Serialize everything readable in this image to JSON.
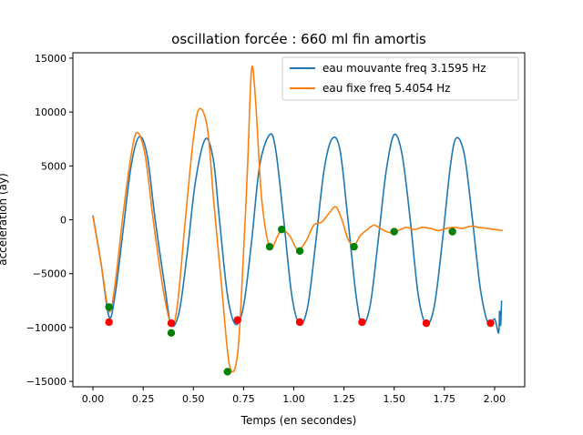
{
  "chart_data": {
    "type": "line",
    "title": "oscillation forcée : 660 ml fin amortis",
    "xlabel": "Temps (en secondes)",
    "ylabel": "acceleration (ay)",
    "xlim": [
      -0.1,
      2.15
    ],
    "ylim": [
      -15500,
      15500
    ],
    "xticks": [
      0.0,
      0.25,
      0.5,
      0.75,
      1.0,
      1.25,
      1.5,
      1.75,
      2.0
    ],
    "xtick_labels": [
      "0.00",
      "0.25",
      "0.50",
      "0.75",
      "1.00",
      "1.25",
      "1.50",
      "1.75",
      "2.00"
    ],
    "yticks": [
      -15000,
      -10000,
      -5000,
      0,
      5000,
      10000,
      15000
    ],
    "ytick_labels": [
      "−15000",
      "−10000",
      "−5000",
      "0",
      "5000",
      "10000",
      "15000"
    ],
    "grid": false,
    "legend_position": "top-right",
    "series": [
      {
        "name": "eau mouvante freq 3.1595 Hz",
        "color": "#1f77b4",
        "points": [
          [
            0.0,
            400
          ],
          [
            0.04,
            -4000
          ],
          [
            0.08,
            -9000
          ],
          [
            0.11,
            -7000
          ],
          [
            0.15,
            -1000
          ],
          [
            0.19,
            5000
          ],
          [
            0.23,
            7700
          ],
          [
            0.27,
            6000
          ],
          [
            0.31,
            0
          ],
          [
            0.36,
            -6500
          ],
          [
            0.39,
            -9800
          ],
          [
            0.43,
            -8500
          ],
          [
            0.47,
            -3000
          ],
          [
            0.51,
            3500
          ],
          [
            0.56,
            7500
          ],
          [
            0.6,
            5500
          ],
          [
            0.63,
            0
          ],
          [
            0.67,
            -7000
          ],
          [
            0.71,
            -9700
          ],
          [
            0.75,
            -8000
          ],
          [
            0.79,
            -2000
          ],
          [
            0.83,
            5000
          ],
          [
            0.88,
            7900
          ],
          [
            0.91,
            6500
          ],
          [
            0.95,
            0
          ],
          [
            0.99,
            -7000
          ],
          [
            1.03,
            -9700
          ],
          [
            1.07,
            -8000
          ],
          [
            1.11,
            -2000
          ],
          [
            1.15,
            4500
          ],
          [
            1.19,
            7500
          ],
          [
            1.23,
            6500
          ],
          [
            1.27,
            0
          ],
          [
            1.31,
            -7000
          ],
          [
            1.34,
            -9700
          ],
          [
            1.38,
            -8000
          ],
          [
            1.42,
            -2000
          ],
          [
            1.46,
            4500
          ],
          [
            1.5,
            7900
          ],
          [
            1.54,
            6000
          ],
          [
            1.58,
            0
          ],
          [
            1.62,
            -7000
          ],
          [
            1.66,
            -9700
          ],
          [
            1.7,
            -8000
          ],
          [
            1.74,
            -2000
          ],
          [
            1.78,
            5000
          ],
          [
            1.81,
            7600
          ],
          [
            1.85,
            6000
          ],
          [
            1.89,
            0
          ],
          [
            1.93,
            -6500
          ],
          [
            1.97,
            -9700
          ],
          [
            2.0,
            -9200
          ],
          [
            2.02,
            -10500
          ],
          [
            2.025,
            -8500
          ],
          [
            2.03,
            -9800
          ],
          [
            2.035,
            -7500
          ]
        ]
      },
      {
        "name": "eau fixe freq 5.4054 Hz",
        "color": "#ff7f0e",
        "points": [
          [
            0.0,
            300
          ],
          [
            0.04,
            -4000
          ],
          [
            0.08,
            -8500
          ],
          [
            0.11,
            -6000
          ],
          [
            0.15,
            500
          ],
          [
            0.19,
            6000
          ],
          [
            0.22,
            8100
          ],
          [
            0.26,
            6000
          ],
          [
            0.3,
            0
          ],
          [
            0.35,
            -6500
          ],
          [
            0.39,
            -9700
          ],
          [
            0.42,
            -8000
          ],
          [
            0.46,
            0
          ],
          [
            0.5,
            7500
          ],
          [
            0.53,
            10300
          ],
          [
            0.57,
            8500
          ],
          [
            0.6,
            2000
          ],
          [
            0.64,
            -6000
          ],
          [
            0.68,
            -13500
          ],
          [
            0.72,
            -12500
          ],
          [
            0.75,
            -3000
          ],
          [
            0.77,
            5000
          ],
          [
            0.79,
            14000
          ],
          [
            0.81,
            11000
          ],
          [
            0.84,
            2000
          ],
          [
            0.88,
            -2500
          ],
          [
            0.92,
            -1500
          ],
          [
            0.94,
            -900
          ],
          [
            0.98,
            -1500
          ],
          [
            1.02,
            -2800
          ],
          [
            1.06,
            -2000
          ],
          [
            1.1,
            -500
          ],
          [
            1.14,
            -200
          ],
          [
            1.18,
            700
          ],
          [
            1.21,
            1200
          ],
          [
            1.24,
            0
          ],
          [
            1.27,
            -1800
          ],
          [
            1.3,
            -2400
          ],
          [
            1.33,
            -1500
          ],
          [
            1.36,
            -1000
          ],
          [
            1.4,
            -500
          ],
          [
            1.44,
            -900
          ],
          [
            1.48,
            -1200
          ],
          [
            1.52,
            -1000
          ],
          [
            1.56,
            -700
          ],
          [
            1.6,
            -900
          ],
          [
            1.64,
            -700
          ],
          [
            1.68,
            -800
          ],
          [
            1.72,
            -1000
          ],
          [
            1.76,
            -800
          ],
          [
            1.8,
            -700
          ],
          [
            1.84,
            -800
          ],
          [
            1.88,
            -600
          ],
          [
            1.92,
            -700
          ],
          [
            1.96,
            -800
          ],
          [
            2.0,
            -900
          ],
          [
            2.04,
            -1000
          ]
        ]
      }
    ],
    "markers": [
      {
        "color": "#ff0000",
        "points": [
          [
            0.08,
            -9500
          ],
          [
            0.39,
            -9600
          ],
          [
            0.72,
            -9300
          ],
          [
            1.03,
            -9500
          ],
          [
            1.34,
            -9500
          ],
          [
            1.66,
            -9600
          ],
          [
            1.98,
            -9600
          ]
        ]
      },
      {
        "color": "#008000",
        "points": [
          [
            0.08,
            -8100
          ],
          [
            0.39,
            -10500
          ],
          [
            0.67,
            -14100
          ],
          [
            0.88,
            -2500
          ],
          [
            0.94,
            -900
          ],
          [
            1.03,
            -2900
          ],
          [
            1.3,
            -2500
          ],
          [
            1.5,
            -1100
          ],
          [
            1.79,
            -1100
          ]
        ]
      }
    ]
  }
}
